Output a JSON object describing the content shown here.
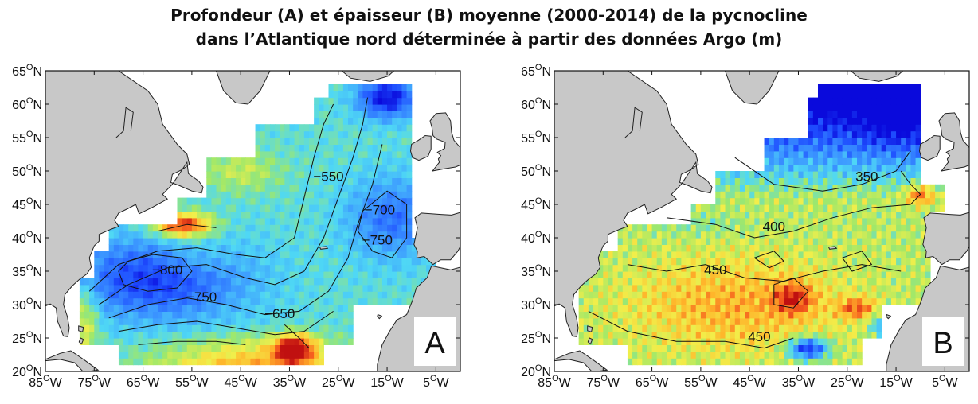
{
  "title": {
    "line1": "Profondeur (A) et épaisseur (B) moyenne (2000-2014) de la pycnocline",
    "line2": "dans l’Atlantique nord déterminée à partir des données Argo (m)"
  },
  "axes": {
    "lat_labels": [
      "65",
      "60",
      "55",
      "50",
      "45",
      "40",
      "35",
      "30",
      "25",
      "20"
    ],
    "lat_suffix": "N",
    "lon_labels": [
      "85",
      "75",
      "65",
      "55",
      "45",
      "35",
      "25",
      "15",
      "5"
    ],
    "lon_suffix": "W",
    "degree_symbol": "O",
    "lat_range": [
      20,
      65
    ],
    "lon_range": [
      -85,
      0
    ]
  },
  "panels": [
    {
      "letter": "A",
      "quantity": "depth",
      "contour_labels": [
        "−550",
        "−700",
        "−750",
        "−800",
        "−750",
        "−650"
      ],
      "contour_label_positions_deg": [
        [
          -27,
          48.5
        ],
        [
          -16.5,
          43.5
        ],
        [
          -17,
          39
        ],
        [
          -60,
          34.5
        ],
        [
          -53,
          30.5
        ],
        [
          -37,
          28
        ]
      ]
    },
    {
      "letter": "B",
      "quantity": "thickness",
      "contour_labels": [
        "350",
        "400",
        "450",
        "450"
      ],
      "contour_label_positions_deg": [
        [
          -21,
          48.5
        ],
        [
          -40,
          41
        ],
        [
          -52,
          34.5
        ],
        [
          -43,
          24.5
        ]
      ]
    }
  ],
  "colors": {
    "land": "#c8c8c8",
    "coast": "#222222",
    "ocean": "#ffffff",
    "scale_deep_blue": "#1a1aff",
    "scale_blue": "#3d8dff",
    "scale_cyan": "#4fd0ff",
    "scale_green": "#9fe86a",
    "scale_yellow": "#f5ee4a",
    "scale_orange": "#ff9a1f",
    "scale_red": "#e8261a"
  }
}
